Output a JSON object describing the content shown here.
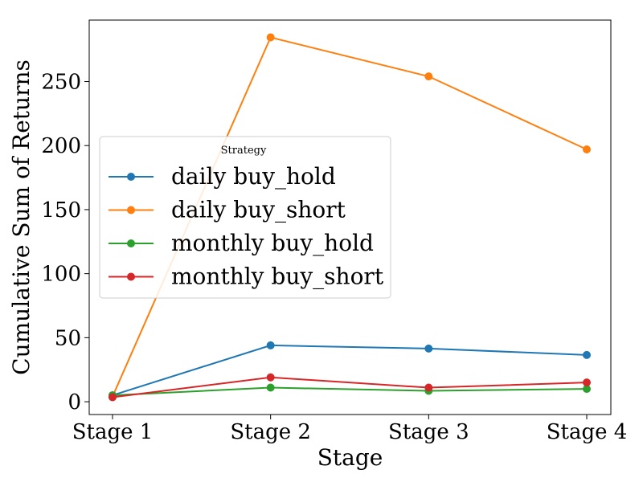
{
  "chart_data": {
    "type": "line",
    "title": "",
    "xlabel": "Stage",
    "ylabel": "Cumulative Sum of Returns",
    "categories": [
      "Stage 1",
      "Stage 2",
      "Stage 3",
      "Stage 4"
    ],
    "yticks": [
      0,
      50,
      100,
      150,
      200,
      250
    ],
    "ylim": [
      -10,
      298
    ],
    "grid": false,
    "legend": {
      "title": "Strategy",
      "placement": "center-left"
    },
    "series": [
      {
        "name": "daily buy_hold",
        "color": "#1f77b4",
        "values": [
          5,
          44,
          41.5,
          36.5
        ]
      },
      {
        "name": "daily buy_short",
        "color": "#ff7f0e",
        "values": [
          4,
          284.5,
          254,
          197
        ]
      },
      {
        "name": "monthly buy_hold",
        "color": "#2ca02c",
        "values": [
          5,
          11,
          8.5,
          10
        ]
      },
      {
        "name": "monthly buy_short",
        "color": "#d62728",
        "values": [
          3.5,
          19,
          11,
          15
        ]
      }
    ]
  }
}
